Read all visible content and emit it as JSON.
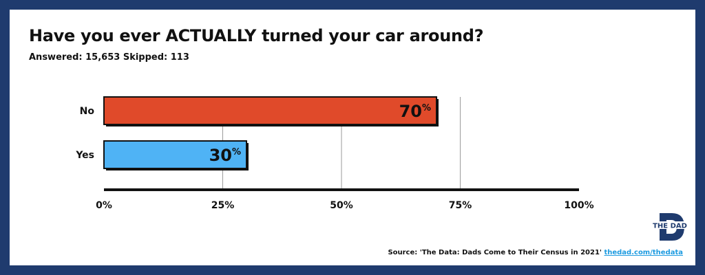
{
  "title": "Have you ever ACTUALLY turned your car around?",
  "subtitle": "Answered: 15,653  Skipped: 113",
  "source": {
    "text": "Source: 'The Data: Dads Come to Their Census in 2021'",
    "link": "thedad.com/thedata"
  },
  "logo_text": "THE DAD",
  "colors": {
    "frame": "#1f3b6e",
    "no_bar": "#e04a2a",
    "yes_bar": "#4fb3f5",
    "link": "#1e9be0"
  },
  "chart_data": {
    "type": "bar",
    "orientation": "horizontal",
    "categories": [
      "No",
      "Yes"
    ],
    "values": [
      70,
      30
    ],
    "value_labels": [
      "70%",
      "30%"
    ],
    "xlim": [
      0,
      100
    ],
    "xticks": [
      0,
      25,
      50,
      75,
      100
    ],
    "xtick_labels": [
      "0%",
      "25%",
      "50%",
      "75%",
      "100%"
    ],
    "grid": true,
    "legend": "none"
  }
}
